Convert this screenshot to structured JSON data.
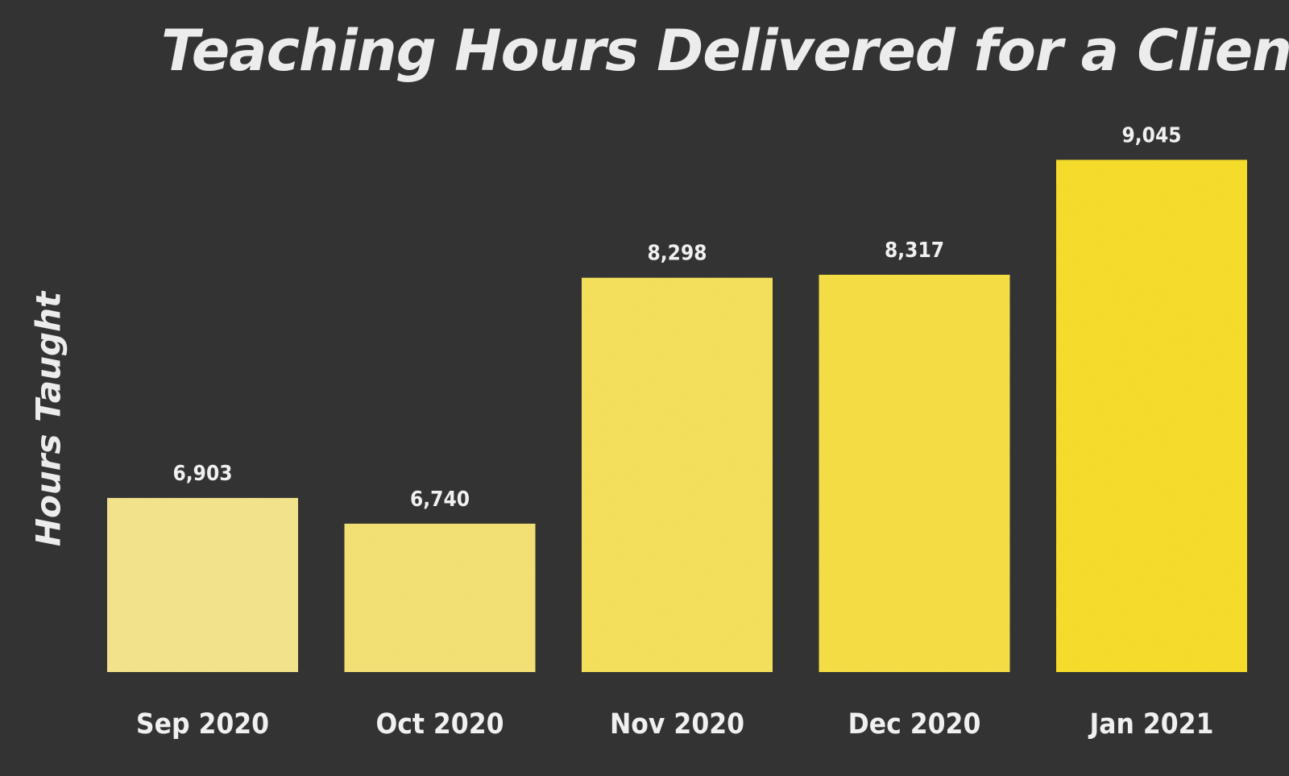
{
  "chart_data": {
    "type": "bar",
    "title": "Teaching Hours Delivered for a Client",
    "xlabel": "",
    "ylabel": "Hours Taught",
    "categories": [
      "Sep 2020",
      "Oct 2020",
      "Nov 2020",
      "Dec 2020",
      "Jan 2021"
    ],
    "values": [
      6903,
      6740,
      8298,
      8317,
      9045
    ],
    "value_labels": [
      "6,903",
      "6,740",
      "8,298",
      "8,317",
      "9,045"
    ],
    "ylim": [
      5800,
      9200
    ],
    "grid": false,
    "legend": "none"
  },
  "colors": {
    "background": "#333333",
    "text": "#ececec",
    "bar_light": "#f6e68f",
    "bar_dark": "#f9df2f"
  }
}
